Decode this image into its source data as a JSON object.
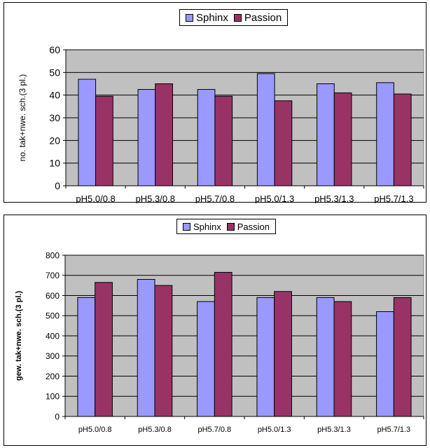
{
  "colors": {
    "plot_bg": "#c0c0c0",
    "sphinx": "#9999ff",
    "passion": "#993366"
  },
  "legend": {
    "sphinx": "Sphinx",
    "passion": "Passion"
  },
  "chart_data": [
    {
      "type": "bar",
      "categories": [
        "pH5.0/0.8",
        "pH5.3/0.8",
        "pH5.7/0.8",
        "pH5.0/1.3",
        "pH5.3/1.3",
        "pH5.7/1.3"
      ],
      "series": [
        {
          "name": "Sphinx",
          "values": [
            47,
            42.5,
            42.5,
            49.5,
            45,
            45.5
          ]
        },
        {
          "name": "Passion",
          "values": [
            39.5,
            45,
            39.5,
            37.5,
            41,
            40.5
          ]
        }
      ],
      "ylabel": "no. tak+nwe. sch.(3 pl.)",
      "ylim": [
        0,
        60
      ],
      "yticks": [
        0,
        10,
        20,
        30,
        40,
        50,
        60
      ],
      "grid": true,
      "legend_position": "top-center"
    },
    {
      "type": "bar",
      "categories": [
        "pH5.0/0.8",
        "pH5.3/0.8",
        "pH5.7/0.8",
        "pH5.0/1.3",
        "pH5.3/1.3",
        "pH5.7/1.3"
      ],
      "series": [
        {
          "name": "Sphinx",
          "values": [
            590,
            680,
            570,
            590,
            590,
            520
          ]
        },
        {
          "name": "Passion",
          "values": [
            665,
            650,
            715,
            620,
            570,
            590
          ]
        }
      ],
      "ylabel": "gew. tak+nwe. sch.(3 pl.)",
      "ylim": [
        0,
        800
      ],
      "yticks": [
        0,
        100,
        200,
        300,
        400,
        500,
        600,
        700,
        800
      ],
      "grid": true,
      "legend_position": "top-center"
    }
  ]
}
